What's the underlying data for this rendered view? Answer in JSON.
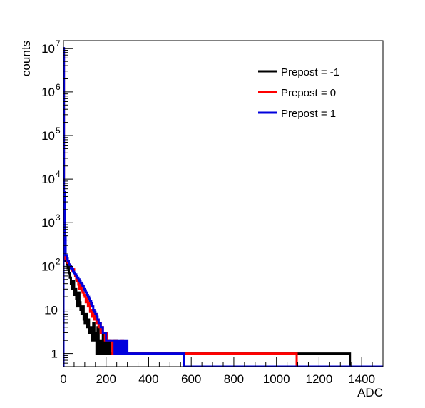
{
  "chart_data": {
    "type": "line",
    "style": "step-histogram",
    "xlabel": "ADC",
    "ylabel": "counts",
    "xlim": [
      0,
      1500
    ],
    "ylim": [
      0.5,
      15000000
    ],
    "yscale": "log",
    "grid": false,
    "legend_position": "top-right",
    "x_ticks": [
      0,
      200,
      400,
      600,
      800,
      1000,
      1200,
      1400
    ],
    "x_tick_labels": [
      "0",
      "200",
      "400",
      "600",
      "800",
      "1000",
      "1200",
      "1400"
    ],
    "y_ticks": [
      1,
      10,
      100,
      1000,
      10000,
      100000,
      1000000,
      10000000
    ],
    "y_tick_labels": [
      {
        "base": "1",
        "exp": ""
      },
      {
        "base": "10",
        "exp": ""
      },
      {
        "base": "10",
        "exp": "2"
      },
      {
        "base": "10",
        "exp": "3"
      },
      {
        "base": "10",
        "exp": "4"
      },
      {
        "base": "10",
        "exp": "5"
      },
      {
        "base": "10",
        "exp": "6"
      },
      {
        "base": "10",
        "exp": "7"
      }
    ],
    "series": [
      {
        "name": "Prepost = -1",
        "color": "#000000",
        "points": [
          [
            0,
            10000000
          ],
          [
            2,
            3000
          ],
          [
            5,
            400
          ],
          [
            10,
            130
          ],
          [
            15,
            110
          ],
          [
            20,
            90
          ],
          [
            25,
            70
          ],
          [
            30,
            55
          ],
          [
            35,
            40
          ],
          [
            40,
            30
          ],
          [
            45,
            45
          ],
          [
            50,
            22
          ],
          [
            55,
            30
          ],
          [
            60,
            18
          ],
          [
            65,
            12
          ],
          [
            70,
            25
          ],
          [
            75,
            15
          ],
          [
            80,
            10
          ],
          [
            85,
            8
          ],
          [
            90,
            12
          ],
          [
            95,
            6
          ],
          [
            100,
            5
          ],
          [
            105,
            8
          ],
          [
            110,
            4
          ],
          [
            115,
            6
          ],
          [
            120,
            3
          ],
          [
            125,
            4
          ],
          [
            130,
            3
          ],
          [
            135,
            2
          ],
          [
            140,
            5
          ],
          [
            145,
            2
          ],
          [
            150,
            3
          ],
          [
            155,
            1
          ],
          [
            160,
            4
          ],
          [
            165,
            2
          ],
          [
            170,
            1
          ],
          [
            175,
            2
          ],
          [
            180,
            1
          ],
          [
            185,
            3
          ],
          [
            190,
            1
          ],
          [
            195,
            2
          ],
          [
            200,
            1
          ],
          [
            205,
            1
          ],
          [
            210,
            2
          ],
          [
            220,
            1
          ],
          [
            230,
            1
          ],
          [
            240,
            2
          ],
          [
            250,
            1
          ],
          [
            270,
            1
          ],
          [
            280,
            1
          ],
          [
            290,
            1
          ],
          [
            310,
            1
          ],
          [
            330,
            1
          ],
          [
            350,
            1
          ],
          [
            390,
            1
          ],
          [
            410,
            1
          ],
          [
            440,
            1
          ],
          [
            470,
            1
          ],
          [
            490,
            1
          ],
          [
            510,
            1
          ],
          [
            530,
            1
          ],
          [
            580,
            1
          ],
          [
            620,
            1
          ],
          [
            660,
            1
          ],
          [
            690,
            1
          ],
          [
            770,
            1
          ],
          [
            860,
            1
          ],
          [
            900,
            1
          ],
          [
            940,
            1
          ],
          [
            960,
            1
          ],
          [
            990,
            1
          ],
          [
            1010,
            1
          ],
          [
            1040,
            1
          ],
          [
            1220,
            1
          ],
          [
            1340,
            1
          ]
        ]
      },
      {
        "name": "Prepost = 0",
        "color": "#ff0000",
        "points": [
          [
            0,
            9000000
          ],
          [
            2,
            2500
          ],
          [
            5,
            300
          ],
          [
            10,
            150
          ],
          [
            15,
            130
          ],
          [
            20,
            120
          ],
          [
            25,
            110
          ],
          [
            30,
            100
          ],
          [
            35,
            95
          ],
          [
            40,
            80
          ],
          [
            45,
            85
          ],
          [
            50,
            70
          ],
          [
            55,
            60
          ],
          [
            60,
            50
          ],
          [
            65,
            45
          ],
          [
            70,
            38
          ],
          [
            75,
            30
          ],
          [
            80,
            40
          ],
          [
            85,
            28
          ],
          [
            90,
            25
          ],
          [
            95,
            22
          ],
          [
            100,
            20
          ],
          [
            105,
            15
          ],
          [
            110,
            18
          ],
          [
            115,
            12
          ],
          [
            120,
            14
          ],
          [
            125,
            9
          ],
          [
            130,
            10
          ],
          [
            135,
            7
          ],
          [
            140,
            9
          ],
          [
            145,
            6
          ],
          [
            150,
            8
          ],
          [
            155,
            5
          ],
          [
            160,
            6
          ],
          [
            165,
            4
          ],
          [
            170,
            5
          ],
          [
            175,
            3
          ],
          [
            180,
            4
          ],
          [
            185,
            3
          ],
          [
            190,
            3
          ],
          [
            195,
            2
          ],
          [
            200,
            3
          ],
          [
            205,
            2
          ],
          [
            210,
            2
          ],
          [
            220,
            2
          ],
          [
            230,
            1
          ],
          [
            240,
            2
          ],
          [
            250,
            1
          ],
          [
            260,
            1
          ],
          [
            270,
            2
          ],
          [
            280,
            1
          ],
          [
            290,
            1
          ],
          [
            300,
            1
          ],
          [
            320,
            1
          ],
          [
            340,
            1
          ],
          [
            360,
            1
          ],
          [
            380,
            1
          ],
          [
            420,
            1
          ],
          [
            460,
            1
          ],
          [
            560,
            1
          ],
          [
            600,
            1
          ],
          [
            680,
            1
          ],
          [
            750,
            1
          ],
          [
            780,
            1
          ],
          [
            890,
            1
          ],
          [
            1090,
            1
          ]
        ]
      },
      {
        "name": "Prepost = 1",
        "color": "#0000dd",
        "points": [
          [
            0,
            10000000
          ],
          [
            2,
            5000
          ],
          [
            5,
            500
          ],
          [
            10,
            180
          ],
          [
            15,
            150
          ],
          [
            20,
            130
          ],
          [
            25,
            110
          ],
          [
            30,
            100
          ],
          [
            35,
            90
          ],
          [
            40,
            85
          ],
          [
            45,
            75
          ],
          [
            50,
            70
          ],
          [
            55,
            65
          ],
          [
            60,
            60
          ],
          [
            65,
            55
          ],
          [
            70,
            50
          ],
          [
            75,
            45
          ],
          [
            80,
            42
          ],
          [
            85,
            38
          ],
          [
            90,
            35
          ],
          [
            95,
            30
          ],
          [
            100,
            28
          ],
          [
            105,
            25
          ],
          [
            110,
            22
          ],
          [
            115,
            20
          ],
          [
            120,
            18
          ],
          [
            125,
            16
          ],
          [
            130,
            14
          ],
          [
            135,
            12
          ],
          [
            140,
            10
          ],
          [
            145,
            9
          ],
          [
            150,
            8
          ],
          [
            155,
            7
          ],
          [
            160,
            6
          ],
          [
            165,
            5
          ],
          [
            170,
            5
          ],
          [
            175,
            4
          ],
          [
            180,
            4
          ],
          [
            185,
            3
          ],
          [
            190,
            3
          ],
          [
            195,
            3
          ],
          [
            200,
            2
          ],
          [
            210,
            2
          ],
          [
            220,
            2
          ],
          [
            230,
            2
          ],
          [
            240,
            1
          ],
          [
            250,
            2
          ],
          [
            260,
            1
          ],
          [
            270,
            2
          ],
          [
            280,
            1
          ],
          [
            290,
            2
          ],
          [
            300,
            1
          ],
          [
            310,
            1
          ],
          [
            320,
            1
          ],
          [
            330,
            1
          ],
          [
            340,
            1
          ],
          [
            350,
            1
          ],
          [
            360,
            1
          ],
          [
            380,
            1
          ],
          [
            400,
            1
          ],
          [
            420,
            1
          ],
          [
            440,
            1
          ],
          [
            460,
            1
          ],
          [
            480,
            1
          ],
          [
            500,
            1
          ],
          [
            520,
            1
          ],
          [
            540,
            1
          ],
          [
            560,
            1
          ]
        ]
      }
    ]
  }
}
